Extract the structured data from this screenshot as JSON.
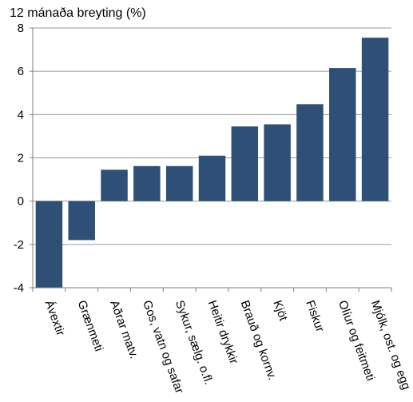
{
  "chart_data": {
    "type": "bar",
    "title": "12 mánaða breyting (%)",
    "xlabel": "",
    "ylabel": "",
    "ylim": [
      -4,
      8
    ],
    "yticks": [
      -4,
      -2,
      0,
      2,
      4,
      6,
      8
    ],
    "grid": true,
    "bar_color": "#2e5077",
    "categories": [
      "Ávextir",
      "Grænmeti",
      "Aðrar matv.",
      "Gos, vatn og safar",
      "Sykur, sælg. o.fl.",
      "Heitir drykkir",
      "Brauð og kornv.",
      "Kjöt",
      "Fiskur",
      "Olíur og feitmeti",
      "Mjólk, ost. og egg"
    ],
    "values": [
      -4.0,
      -1.8,
      1.45,
      1.62,
      1.62,
      2.1,
      3.45,
      3.55,
      4.48,
      6.15,
      7.55
    ]
  }
}
